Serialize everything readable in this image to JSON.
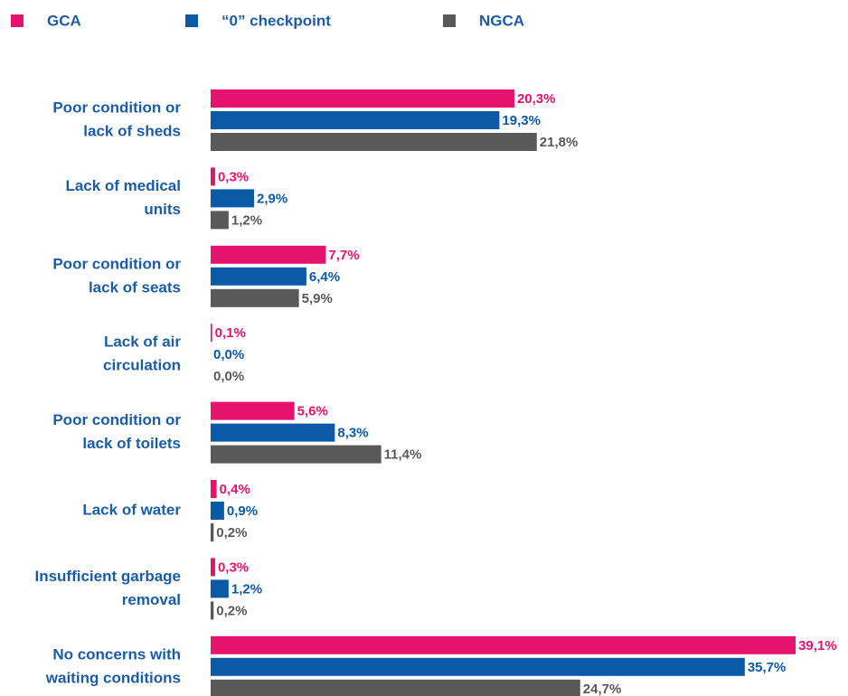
{
  "chart_data": {
    "type": "bar",
    "orientation": "horizontal",
    "categories": [
      [
        "Poor condition or",
        "lack of sheds"
      ],
      [
        "Lack of medical",
        "units"
      ],
      [
        "Poor condition or",
        "lack of seats"
      ],
      [
        "Lack of air",
        "circulation"
      ],
      [
        "Poor condition or",
        "lack of toilets"
      ],
      [
        "Lack of water"
      ],
      [
        "Insufficient garbage",
        "removal"
      ],
      [
        "No concerns with",
        "waiting conditions"
      ]
    ],
    "series": [
      {
        "name": "GCA",
        "color": "#e5126e",
        "values": [
          20.3,
          0.3,
          7.7,
          0.1,
          5.6,
          0.4,
          0.3,
          39.1
        ],
        "value_labels": [
          "20,3%",
          "0,3%",
          "7,7%",
          "0,1%",
          "5,6%",
          "0,4%",
          "0,3%",
          "39,1%"
        ]
      },
      {
        "name": "“0” checkpoint",
        "color": "#0b5aa8",
        "values": [
          19.3,
          2.9,
          6.4,
          0.0,
          8.3,
          0.9,
          1.2,
          35.7
        ],
        "value_labels": [
          "19,3%",
          "2,9%",
          "6,4%",
          "0,0%",
          "8,3%",
          "0,9%",
          "1,2%",
          "35,7%"
        ]
      },
      {
        "name": "NGCA",
        "color": "#595959",
        "values": [
          21.8,
          1.2,
          5.9,
          0.0,
          11.4,
          0.2,
          0.2,
          24.7
        ],
        "value_labels": [
          "21,8%",
          "1,2%",
          "5,9%",
          "0,0%",
          "11,4%",
          "0,2%",
          "0,2%",
          "24,7%"
        ]
      }
    ],
    "xlim": [
      0,
      40
    ],
    "legend": "top"
  }
}
